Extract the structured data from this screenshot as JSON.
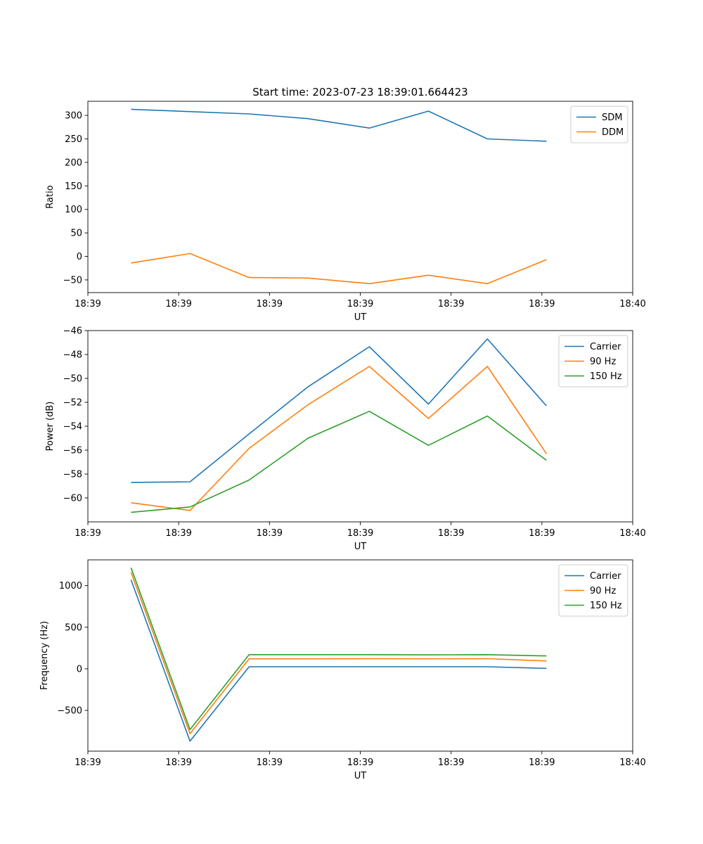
{
  "title": "Start time: 2023-07-23 18:39:01.664423",
  "colors": {
    "blue": "#1f77b4",
    "orange": "#ff7f0e",
    "green": "#2ca02c"
  },
  "chart_data": [
    {
      "type": "line",
      "xlabel": "UT",
      "ylabel": "Ratio",
      "xlim": [
        0,
        24
      ],
      "ylim": [
        -77,
        330
      ],
      "x_ticks": [
        0,
        4,
        8,
        12,
        16,
        20,
        24
      ],
      "x_tick_labels": [
        "18:39",
        "18:39",
        "18:39",
        "18:39",
        "18:39",
        "18:39",
        "18:40"
      ],
      "y_ticks": [
        -50,
        0,
        50,
        100,
        150,
        200,
        250,
        300
      ],
      "y_tick_labels": [
        "−50",
        "0",
        "50",
        "100",
        "150",
        "200",
        "250",
        "300"
      ],
      "x": [
        1.9,
        4.5,
        7.1,
        9.7,
        12.4,
        15.0,
        17.6,
        20.2
      ],
      "series": [
        {
          "name": "SDM",
          "color": "#1f77b4",
          "values": [
            313,
            308,
            303,
            293,
            273,
            309,
            250,
            245
          ]
        },
        {
          "name": "DDM",
          "color": "#ff7f0e",
          "values": [
            -14,
            6,
            -45,
            -46,
            -58,
            -40,
            -58,
            -7
          ]
        }
      ],
      "legend_position": "top-right"
    },
    {
      "type": "line",
      "xlabel": "UT",
      "ylabel": "Power (dB)",
      "xlim": [
        0,
        24
      ],
      "ylim": [
        -62.0,
        -46.0
      ],
      "x_ticks": [
        0,
        4,
        8,
        12,
        16,
        20,
        24
      ],
      "x_tick_labels": [
        "18:39",
        "18:39",
        "18:39",
        "18:39",
        "18:39",
        "18:39",
        "18:40"
      ],
      "y_ticks": [
        -60,
        -58,
        -56,
        -54,
        -52,
        -50,
        -48,
        -46
      ],
      "y_tick_labels": [
        "−60",
        "−58",
        "−56",
        "−54",
        "−52",
        "−50",
        "−48",
        "−46"
      ],
      "x": [
        1.9,
        4.5,
        7.1,
        9.7,
        12.4,
        15.0,
        17.6,
        20.2
      ],
      "series": [
        {
          "name": "Carrier",
          "color": "#1f77b4",
          "values": [
            -58.7,
            -58.65,
            -54.65,
            -50.7,
            -47.35,
            -52.15,
            -46.7,
            -52.3
          ]
        },
        {
          "name": "90 Hz",
          "color": "#ff7f0e",
          "values": [
            -60.4,
            -61.05,
            -55.85,
            -52.2,
            -49.0,
            -53.35,
            -49.0,
            -56.3
          ]
        },
        {
          "name": "150 Hz",
          "color": "#2ca02c",
          "values": [
            -61.2,
            -60.75,
            -58.5,
            -55.0,
            -52.75,
            -55.6,
            -53.15,
            -56.85
          ]
        }
      ],
      "legend_position": "top-right"
    },
    {
      "type": "line",
      "xlabel": "UT",
      "ylabel": "Frequency (Hz)",
      "xlim": [
        0,
        24
      ],
      "ylim": [
        -990,
        1310
      ],
      "x_ticks": [
        0,
        4,
        8,
        12,
        16,
        20,
        24
      ],
      "x_tick_labels": [
        "18:39",
        "18:39",
        "18:39",
        "18:39",
        "18:39",
        "18:39",
        "18:40"
      ],
      "y_ticks": [
        -500,
        0,
        500,
        1000
      ],
      "y_tick_labels": [
        "−500",
        "0",
        "500",
        "1000"
      ],
      "x": [
        1.9,
        4.5,
        7.1,
        9.7,
        12.4,
        15.0,
        17.6,
        20.2
      ],
      "series": [
        {
          "name": "Carrier",
          "color": "#1f77b4",
          "values": [
            1070,
            -870,
            25,
            25,
            25,
            25,
            25,
            5
          ]
        },
        {
          "name": "90 Hz",
          "color": "#ff7f0e",
          "values": [
            1160,
            -780,
            120,
            120,
            122,
            120,
            122,
            95
          ]
        },
        {
          "name": "150 Hz",
          "color": "#2ca02c",
          "values": [
            1215,
            -730,
            170,
            170,
            170,
            168,
            170,
            155
          ]
        }
      ],
      "legend_position": "top-right"
    }
  ]
}
